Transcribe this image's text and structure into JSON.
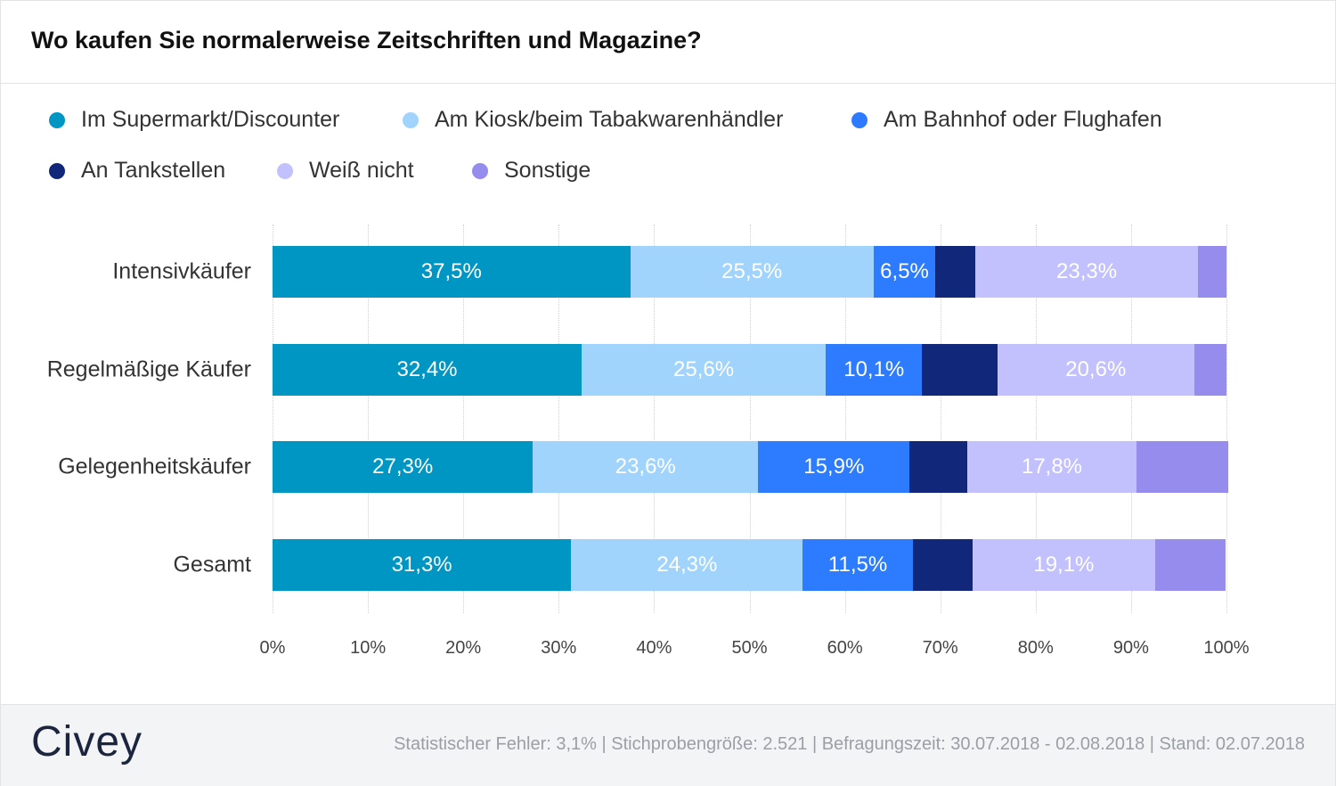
{
  "chart_data": {
    "type": "bar",
    "orientation": "horizontal",
    "stacked": true,
    "title": "Wo kaufen Sie normalerweise Zeitschriften und Magazine?",
    "categories": [
      "Intensivkäufer",
      "Regelmäßige Käufer",
      "Gelegenheitskäufer",
      "Gesamt"
    ],
    "series": [
      {
        "name": "Im Supermarkt/Discounter",
        "color": "#0096c4",
        "values": [
          37.5,
          32.4,
          27.3,
          31.3
        ],
        "labels": [
          "37,5%",
          "32,4%",
          "27,3%",
          "31,3%"
        ]
      },
      {
        "name": "Am Kiosk/beim Tabakwarenhändler",
        "color": "#a1d4fd",
        "values": [
          25.5,
          25.6,
          23.6,
          24.3
        ],
        "labels": [
          "25,5%",
          "25,6%",
          "23,6%",
          "24,3%"
        ]
      },
      {
        "name": "Am Bahnhof oder Flughafen",
        "color": "#2d7cff",
        "values": [
          6.5,
          10.1,
          15.9,
          11.5
        ],
        "labels": [
          "6,5%",
          "10,1%",
          "15,9%",
          "11,5%"
        ]
      },
      {
        "name": "An Tankstellen",
        "color": "#10277a",
        "values": [
          4.2,
          7.9,
          6.0,
          6.3
        ],
        "labels": [
          "",
          "",
          "",
          ""
        ]
      },
      {
        "name": "Weiß  nicht",
        "color": "#c2c0fd",
        "values": [
          23.3,
          20.6,
          17.8,
          19.1
        ],
        "labels": [
          "23,3%",
          "20,6%",
          "17,8%",
          "19,1%"
        ]
      },
      {
        "name": "Sonstige",
        "color": "#958cee",
        "values": [
          3.0,
          3.4,
          9.6,
          7.4
        ],
        "labels": [
          "",
          "",
          "",
          ""
        ]
      }
    ],
    "xlim": [
      0,
      100
    ],
    "xticks": [
      "0%",
      "10%",
      "20%",
      "30%",
      "40%",
      "50%",
      "60%",
      "70%",
      "80%",
      "90%",
      "100%"
    ],
    "grid": true,
    "legend_position": "top"
  },
  "footer": {
    "logo": "Civey",
    "meta": "Statistischer Fehler: 3,1% | Stichprobengröße: 2.521 | Befragungszeit: 30.07.2018 - 02.08.2018 | Stand: 02.07.2018"
  }
}
